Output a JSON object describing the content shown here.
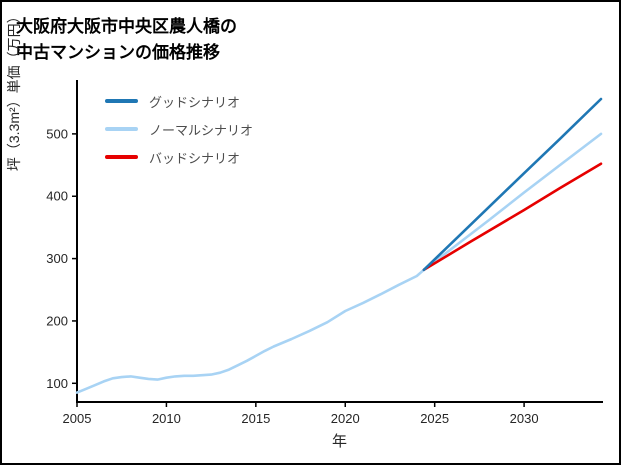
{
  "page": {
    "title_lines": [
      "大阪府大阪市中央区農人橋の",
      "中古マンションの価格推移"
    ]
  },
  "chart_data": {
    "type": "line",
    "title": "大阪府大阪市中央区農人橋の中古マンションの価格推移",
    "xlabel": "年",
    "ylabel": "坪（3.3m²）単価（万円）",
    "xlim": [
      2005,
      2034.3
    ],
    "ylim": [
      70,
      580
    ],
    "xticks": [
      2005,
      2010,
      2015,
      2020,
      2025,
      2030
    ],
    "yticks": [
      100,
      200,
      300,
      400,
      500
    ],
    "grid": false,
    "legend_position": "upper-left",
    "axis_color": "#000000",
    "tick_label_color": "#262626",
    "series": [
      {
        "name": "グッドシナリオ",
        "color": "#1f77b4",
        "x": [
          2024.4,
          2027,
          2030,
          2032,
          2034.3
        ],
        "y": [
          282,
          354,
          437,
          492,
          556
        ]
      },
      {
        "name": "ノーマルシナリオ",
        "color": "#a8d3f4",
        "x": [
          2005,
          2005.5,
          2006,
          2006.5,
          2007,
          2007.5,
          2008,
          2008.5,
          2009,
          2009.5,
          2010,
          2010.5,
          2011,
          2011.5,
          2012,
          2012.5,
          2013,
          2013.5,
          2014,
          2014.5,
          2015,
          2015.5,
          2016,
          2017,
          2018,
          2019,
          2020,
          2021,
          2022,
          2023,
          2024,
          2024.4,
          2026,
          2028,
          2030,
          2032,
          2034.3
        ],
        "y": [
          85,
          91,
          97,
          103,
          108,
          110,
          111,
          109,
          107,
          106,
          109,
          111,
          112,
          112,
          113,
          114,
          117,
          122,
          129,
          136,
          144,
          152,
          159,
          171,
          184,
          198,
          216,
          229,
          243,
          258,
          272,
          282,
          317,
          361,
          406,
          450,
          500
        ]
      },
      {
        "name": "バッドシナリオ",
        "color": "#e60000",
        "x": [
          2024.4,
          2027,
          2030,
          2032,
          2034.3
        ],
        "y": [
          282,
          327,
          378,
          413,
          452
        ]
      }
    ]
  }
}
